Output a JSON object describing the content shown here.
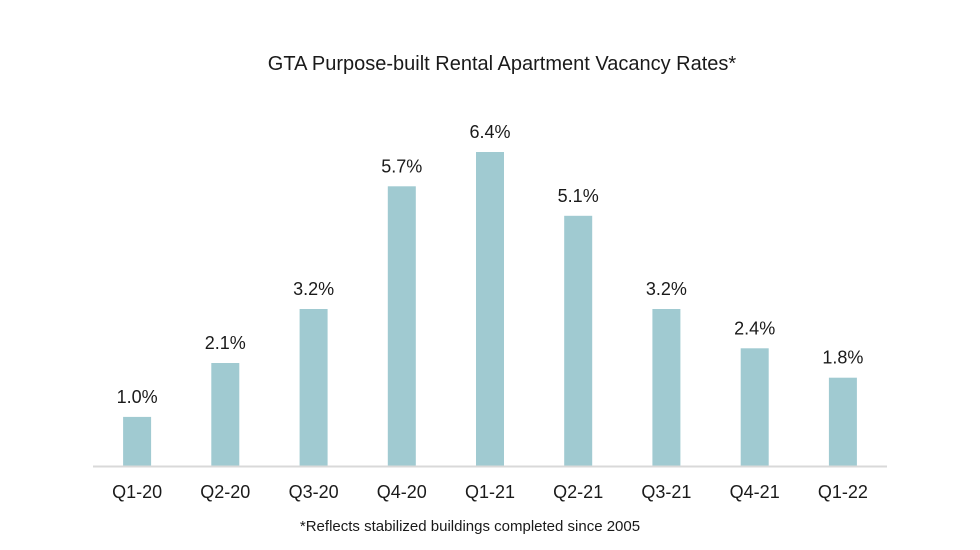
{
  "chart_data": {
    "type": "bar",
    "title": "GTA Purpose-built Rental Apartment Vacancy Rates*",
    "categories": [
      "Q1-20",
      "Q2-20",
      "Q3-20",
      "Q4-20",
      "Q1-21",
      "Q2-21",
      "Q3-21",
      "Q4-21",
      "Q1-22"
    ],
    "values": [
      1.0,
      2.1,
      3.2,
      5.7,
      6.4,
      5.1,
      3.2,
      2.4,
      1.8
    ],
    "data_labels": [
      "1.0%",
      "2.1%",
      "3.2%",
      "5.7%",
      "6.4%",
      "5.1%",
      "3.2%",
      "2.4%",
      "1.8%"
    ],
    "unit": "%",
    "xlabel": "",
    "ylabel": "",
    "ylim": [
      0,
      6.4
    ],
    "grid": false,
    "legend": "none",
    "bar_color": "#a0cad1",
    "axis_color": "#d9d9d9",
    "footnote": "*Reflects stabilized buildings completed since 2005"
  }
}
